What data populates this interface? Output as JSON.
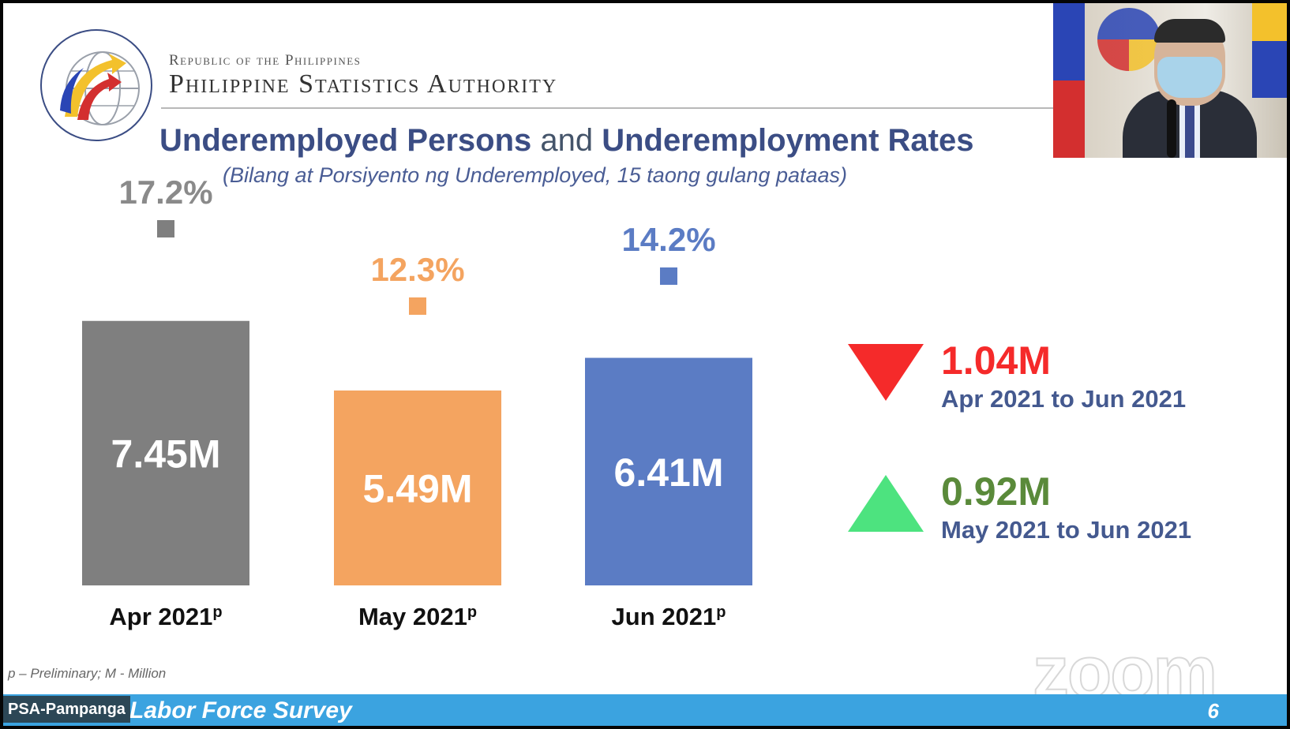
{
  "header": {
    "republic": "Republic of the Philippines",
    "agency": "Philippine Statistics Authority"
  },
  "title": {
    "part1": "Underemployed Persons",
    "part2": " and ",
    "part3": "Underemployment Rates",
    "subtitle": "(Bilang at Porsiyento ng Underemployed, 15 taong gulang pataas)"
  },
  "chart_data": {
    "type": "bar",
    "title": "Underemployed Persons and Underemployment Rates",
    "categories": [
      "Apr 2021",
      "May 2021",
      "Jun 2021"
    ],
    "category_superscript": "p",
    "series": [
      {
        "name": "",
        "values": [
          7.45,
          5.49,
          6.41
        ],
        "value_labels": [
          "7.45M",
          "5.49M",
          "6.41M"
        ]
      }
    ],
    "rates": [
      17.2,
      12.3,
      14.2
    ],
    "rate_labels": [
      "17.2%",
      "12.3%",
      "14.2%"
    ],
    "colors": [
      "#7f7f7f",
      "#f4a460",
      "#5b7cc4"
    ],
    "rate_colors": [
      "#7f7f7f",
      "#f4a460",
      "#5b7cc4"
    ],
    "rate_label_colors": [
      "#8a8a8a",
      "#f4a460",
      "#5b7cc4"
    ],
    "ylim": [
      0,
      10
    ],
    "grid": false,
    "legend": "none"
  },
  "changes": [
    {
      "value": "1.04M",
      "period": "Apr 2021 to Jun 2021",
      "direction": "down",
      "color": "#f52a2a"
    },
    {
      "value": "0.92M",
      "period": "May 2021 to Jun 2021",
      "direction": "up",
      "color": "#5a8a3a"
    }
  ],
  "footnote": "p – Preliminary; M - Million",
  "footer": {
    "title": "Labor Force Survey",
    "page": "6",
    "participant": "PSA-Pampanga",
    "watermark": "zoom"
  }
}
